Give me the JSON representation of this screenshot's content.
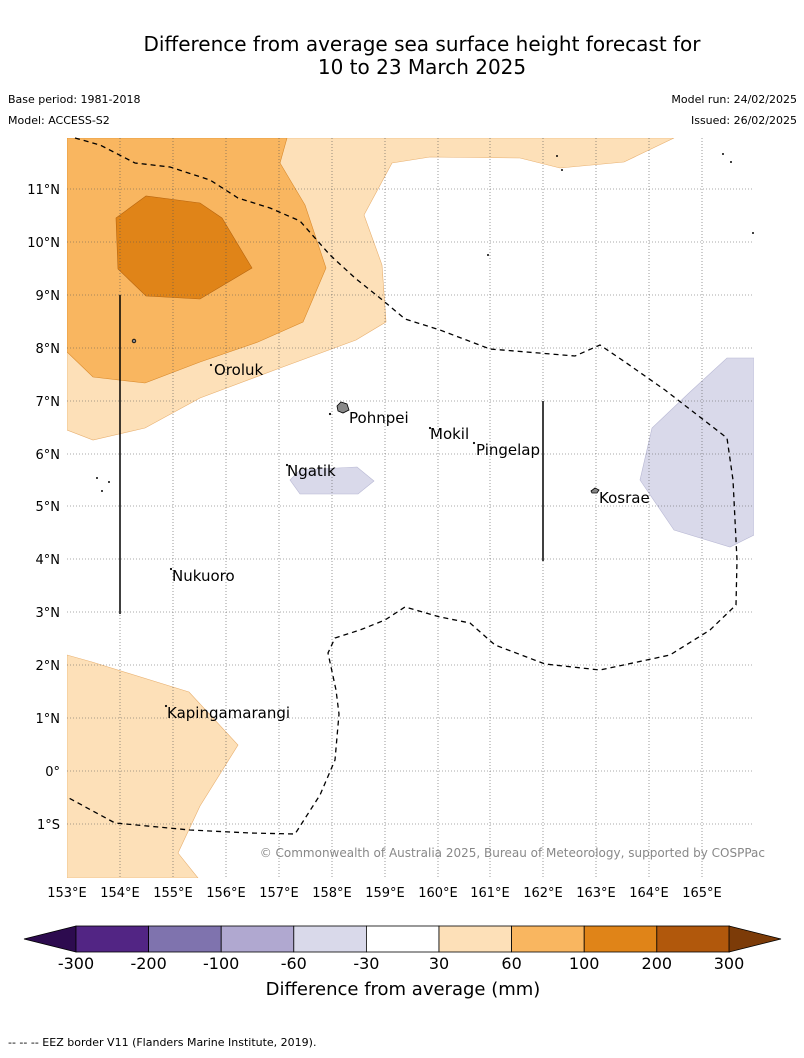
{
  "title_line1": "Difference from average sea surface height forecast for",
  "title_line2": "10 to 23 March 2025",
  "base_period": "Base period: 1981-2018",
  "model": "Model: ACCESS-S2",
  "model_run": "Model run: 24/02/2025",
  "issued": "Issued: 26/02/2025",
  "copyright": "© Commonwealth of Australia 2025, Bureau of Meteorology, supported by COSPPac",
  "footnote": "--  --  -- EEZ border V11 (Flanders Marine Institute, 2019).",
  "colorbar_label": "Difference from average (mm)",
  "colorbar_ticks": [
    "-300",
    "-200",
    "-100",
    "-60",
    "-30",
    "30",
    "60",
    "100",
    "200",
    "300"
  ],
  "colorbar_colors": [
    "#522584",
    "#7f73ae",
    "#b0a8d0",
    "#d9d9ea",
    "#ffffff",
    "#fde0b8",
    "#f9b660",
    "#e08418",
    "#b1580c"
  ],
  "colorbar_min_color": "#2d0b4f",
  "colorbar_max_color": "#7c3b08",
  "lon_labels": [
    "153°E",
    "154°E",
    "155°E",
    "156°E",
    "157°E",
    "158°E",
    "159°E",
    "160°E",
    "161°E",
    "162°E",
    "163°E",
    "164°E",
    "165°E"
  ],
  "lat_labels": [
    "11°N",
    "10°N",
    "9°N",
    "8°N",
    "7°N",
    "6°N",
    "5°N",
    "4°N",
    "3°N",
    "2°N",
    "1°N",
    "0°",
    "1°S"
  ],
  "places": [
    {
      "name": "Oroluk"
    },
    {
      "name": "Pohnpei"
    },
    {
      "name": "Mokil"
    },
    {
      "name": "Pingelap"
    },
    {
      "name": "Ngatik"
    },
    {
      "name": "Kosrae"
    },
    {
      "name": "Nukuoro"
    },
    {
      "name": "Kapingamarangi"
    }
  ]
}
